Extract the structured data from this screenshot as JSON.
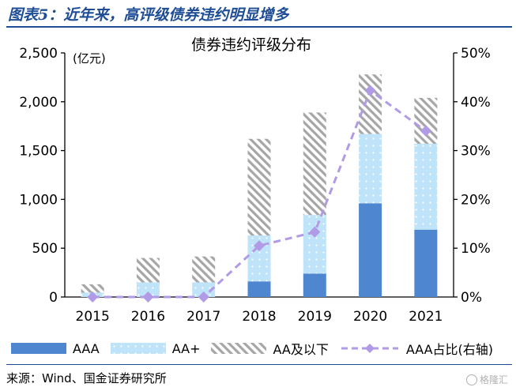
{
  "figure": {
    "heading": "图表5：近年来，高评级债券违约明显增多",
    "source": "来源：Wind、国金证券研究所",
    "watermark": "格隆汇"
  },
  "colors": {
    "heading": "#1f4e96",
    "aaa": "#4f86d0",
    "aa_plus": "#bfe3f8",
    "aa_plus_dot": "#ffffff",
    "aa_below_fill": "#ffffff",
    "aa_below_hatch": "#a6a6a6",
    "ratio_line": "#b19ae6"
  },
  "chart_data": {
    "type": "bar",
    "stacked": true,
    "title": "债券违约评级分布",
    "left_unit": "(亿元)",
    "categories": [
      "2015",
      "2016",
      "2017",
      "2018",
      "2019",
      "2020",
      "2021"
    ],
    "series": [
      {
        "name": "AAA",
        "values": [
          0,
          0,
          0,
          160,
          240,
          960,
          690
        ],
        "style": "solid"
      },
      {
        "name": "AA+",
        "values": [
          45,
          150,
          150,
          470,
          600,
          710,
          880
        ],
        "style": "dotted"
      },
      {
        "name": "AA及以下",
        "values": [
          85,
          250,
          265,
          990,
          1050,
          610,
          470
        ],
        "style": "hatched"
      }
    ],
    "line_series": {
      "name": "AAA占比(右轴)",
      "values": [
        0,
        0,
        0,
        10.5,
        13.3,
        42.3,
        34.0
      ],
      "axis": "right"
    },
    "y_left": {
      "min": 0,
      "max": 2500,
      "ticks": [
        0,
        500,
        1000,
        1500,
        2000,
        2500
      ],
      "tick_labels": [
        "0",
        "500",
        "1,000",
        "1,500",
        "2,000",
        "2,500"
      ]
    },
    "y_right": {
      "min": 0,
      "max": 50,
      "ticks": [
        0,
        10,
        20,
        30,
        40,
        50
      ],
      "tick_labels": [
        "0%",
        "10%",
        "20%",
        "30%",
        "40%",
        "50%"
      ]
    },
    "legend": [
      "AAA",
      "AA+",
      "AA及以下",
      "AAA占比(右轴)"
    ],
    "legend_position": "bottom"
  }
}
